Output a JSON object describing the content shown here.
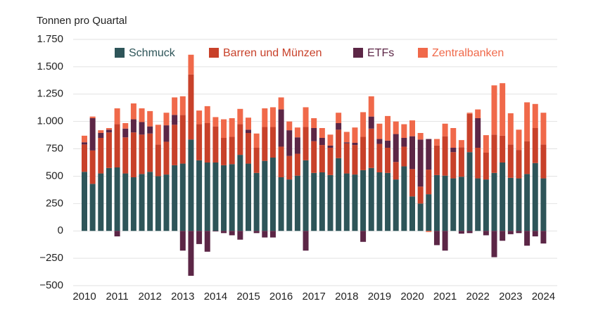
{
  "chart_data": {
    "type": "bar",
    "stacked": true,
    "y_axis_title": "Tonnen pro Quartal",
    "categories": [
      "2010",
      null,
      null,
      null,
      "2011",
      null,
      null,
      null,
      "2012",
      null,
      null,
      null,
      "2013",
      null,
      null,
      null,
      "2014",
      null,
      null,
      null,
      "2015",
      null,
      null,
      null,
      "2016",
      null,
      null,
      null,
      "2017",
      null,
      null,
      null,
      "2018",
      null,
      null,
      null,
      "2019",
      null,
      null,
      null,
      "2020",
      null,
      null,
      null,
      "2021",
      null,
      null,
      null,
      "2022",
      null,
      null,
      null,
      "2023",
      null,
      null,
      null,
      "2024"
    ],
    "series": [
      {
        "name": "Schmuck",
        "color": "#2e5559",
        "values": [
          540,
          430,
          525,
          575,
          580,
          525,
          490,
          520,
          540,
          500,
          515,
          600,
          615,
          835,
          645,
          625,
          625,
          600,
          610,
          695,
          615,
          530,
          640,
          670,
          490,
          470,
          505,
          645,
          530,
          535,
          510,
          665,
          525,
          515,
          555,
          575,
          535,
          530,
          470,
          590,
          315,
          250,
          335,
          510,
          505,
          480,
          495,
          720,
          480,
          470,
          530,
          625,
          485,
          480,
          520,
          620,
          480
        ]
      },
      {
        "name": "Barren und Münzen",
        "color": "#c8412a",
        "values": [
          250,
          305,
          325,
          325,
          395,
          330,
          410,
          360,
          350,
          290,
          300,
          370,
          445,
          595,
          330,
          360,
          330,
          250,
          250,
          280,
          280,
          230,
          310,
          280,
          280,
          215,
          200,
          305,
          290,
          250,
          250,
          260,
          275,
          270,
          305,
          360,
          260,
          230,
          160,
          180,
          250,
          155,
          225,
          270,
          360,
          240,
          270,
          350,
          280,
          245,
          350,
          245,
          305,
          260,
          300,
          320,
          310
        ]
      },
      {
        "name": "ETFs",
        "color": "#5c2646",
        "values": [
          20,
          295,
          45,
          25,
          -50,
          80,
          120,
          115,
          65,
          0,
          150,
          90,
          -180,
          -410,
          -120,
          -190,
          -5,
          -20,
          -40,
          -80,
          30,
          -20,
          -60,
          -60,
          340,
          235,
          150,
          -180,
          120,
          65,
          20,
          60,
          10,
          20,
          -100,
          110,
          45,
          65,
          255,
          80,
          300,
          430,
          280,
          -130,
          -180,
          40,
          -25,
          -20,
          270,
          -40,
          -240,
          -90,
          -30,
          -20,
          -135,
          -50,
          -115
        ]
      },
      {
        "name": "Zentralbanken",
        "color": "#f0694a",
        "values": [
          60,
          15,
          25,
          15,
          145,
          50,
          145,
          125,
          140,
          180,
          115,
          160,
          170,
          180,
          125,
          155,
          85,
          170,
          170,
          140,
          110,
          130,
          170,
          180,
          110,
          80,
          90,
          180,
          90,
          90,
          100,
          95,
          95,
          140,
          225,
          185,
          140,
          225,
          115,
          125,
          145,
          60,
          -10,
          60,
          115,
          180,
          65,
          10,
          80,
          160,
          450,
          480,
          285,
          185,
          355,
          220,
          290
        ]
      }
    ],
    "ylim": [
      -500,
      1750
    ],
    "yticks": [
      {
        "value": -500,
        "label": "−500"
      },
      {
        "value": -250,
        "label": "−250"
      },
      0,
      250,
      500,
      750,
      {
        "value": 1000,
        "label": "1.000"
      },
      {
        "value": 1250,
        "label": "1.250"
      },
      {
        "value": 1500,
        "label": "1.500"
      },
      {
        "value": 1750,
        "label": "1.750"
      }
    ],
    "grid": true,
    "legend": "top"
  }
}
